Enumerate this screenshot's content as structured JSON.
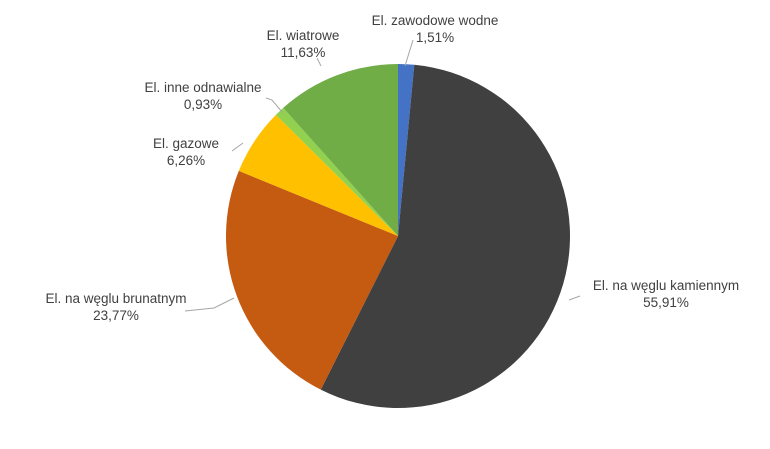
{
  "chart_data": {
    "type": "pie",
    "title": "",
    "slices": [
      {
        "label": "El. zawodowe wodne",
        "value": 1.51,
        "value_text": "1,51%",
        "color": "#4472C4"
      },
      {
        "label": "El. na węglu kamiennym",
        "value": 55.91,
        "value_text": "55,91%",
        "color": "#404040"
      },
      {
        "label": "El. na węglu brunatnym",
        "value": 23.77,
        "value_text": "23,77%",
        "color": "#C55A11"
      },
      {
        "label": "El. gazowe",
        "value": 6.26,
        "value_text": "6,26%",
        "color": "#FFC000"
      },
      {
        "label": "El. inne odnawialne",
        "value": 0.93,
        "value_text": "0,93%",
        "color": "#92D050"
      },
      {
        "label": "El. wiatrowe",
        "value": 11.63,
        "value_text": "11,63%",
        "color": "#70AD47"
      }
    ],
    "start_angle_deg": 0,
    "direction": "clockwise",
    "legend": "none",
    "data_labels": "outside-with-leader-lines"
  }
}
